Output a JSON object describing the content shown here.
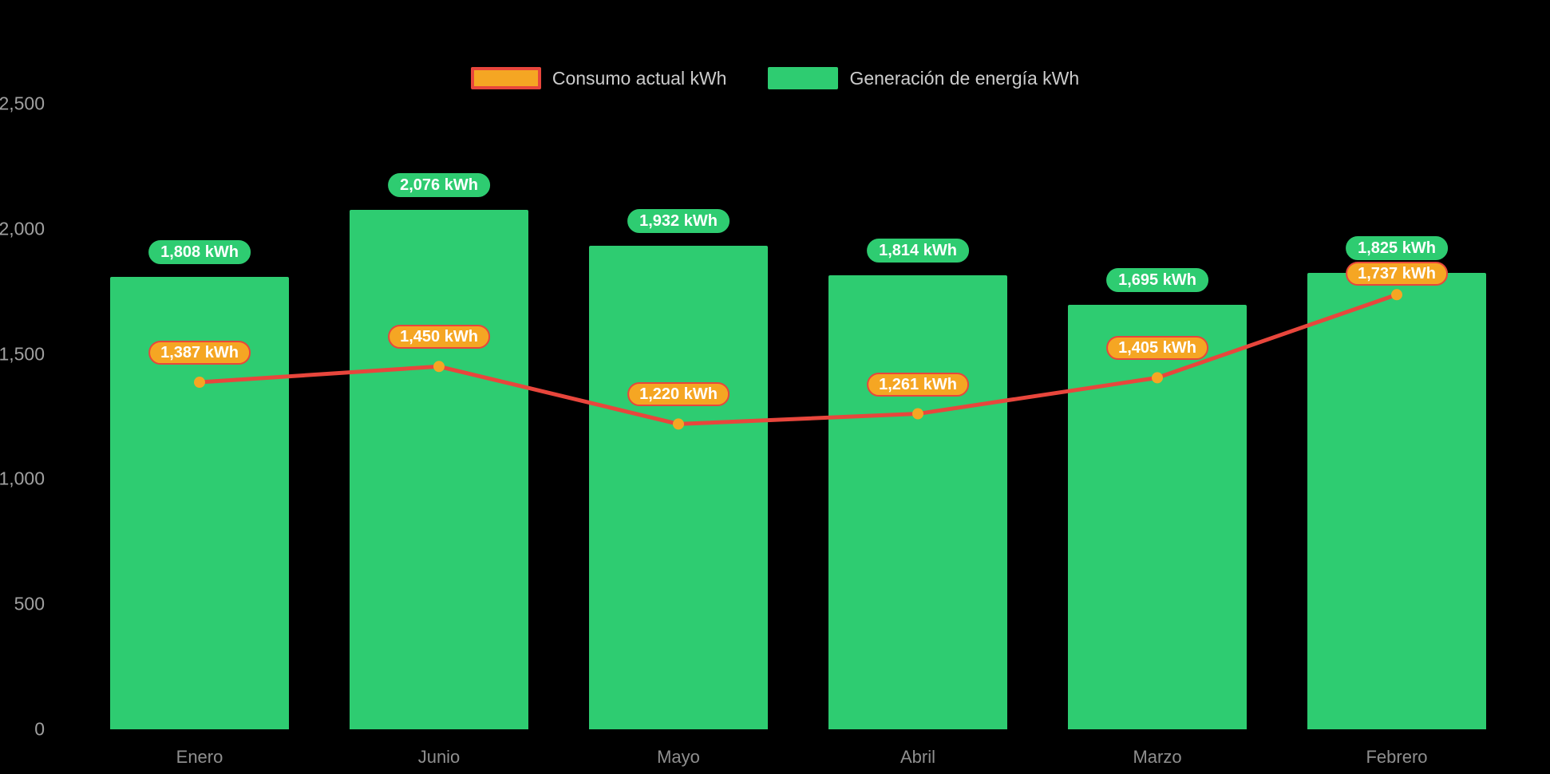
{
  "page": {
    "background": "#000000"
  },
  "legend": {
    "position": "top-center",
    "items": [
      {
        "label": "Consumo actual kWh",
        "swatch_fill": "#f5a623",
        "swatch_border": "#e8463c"
      },
      {
        "label": "Generación de energía kWh",
        "swatch_fill": "#2ecc71",
        "swatch_border": "#2ecc71"
      }
    ]
  },
  "chart_data": {
    "type": "combo",
    "title": "",
    "xlabel": "",
    "ylabel": "",
    "categories": [
      "Enero",
      "Junio",
      "Mayo",
      "Abril",
      "Marzo",
      "Febrero"
    ],
    "series": [
      {
        "name": "Consumo actual kWh",
        "type": "line",
        "color": "#e8463c",
        "marker_color": "#f5a623",
        "label_bg": "#f5a623",
        "label_border": "#e8463c",
        "values": [
          1387,
          1450,
          1220,
          1261,
          1405,
          1737
        ],
        "labels": [
          "1,387 kWh",
          "1,450 kWh",
          "1,220 kWh",
          "1,261 kWh",
          "1,405 kWh",
          "1,737 kWh"
        ]
      },
      {
        "name": "Generación de energía kWh",
        "type": "bar",
        "color": "#2ecc71",
        "label_bg": "#2ecc71",
        "label_border": "#2ecc71",
        "values": [
          1808,
          2076,
          1932,
          1814,
          1695,
          1825
        ],
        "labels": [
          "1,808 kWh",
          "2,076 kWh",
          "1,932 kWh",
          "1,814 kWh",
          "1,695 kWh",
          "1,825 kWh"
        ]
      }
    ],
    "ylim": [
      0,
      2500
    ],
    "yticks": [
      {
        "value": 0,
        "label": "0"
      },
      {
        "value": 500,
        "label": "500"
      },
      {
        "value": 1000,
        "label": "1,000"
      },
      {
        "value": 1500,
        "label": "1,500"
      },
      {
        "value": 2000,
        "label": "2,000"
      },
      {
        "value": 2500,
        "label": "2,500"
      }
    ],
    "grid": false,
    "legend_position": "top-center"
  }
}
